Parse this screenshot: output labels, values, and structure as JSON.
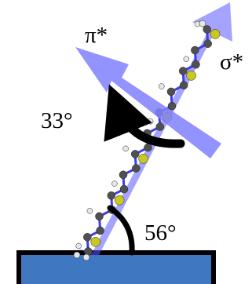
{
  "labels": {
    "pi_star": "π*",
    "sigma_star": "σ*",
    "angle_between": "33°",
    "tilt_angle": "56°"
  },
  "colors": {
    "arrow_fill": "#8080ff",
    "backbone": "#3c3cf0",
    "carbon_atom": "#505050",
    "hydrogen_atom": "#e6e6e6",
    "sulfur_atom": "#c8c81e",
    "substrate_fill": "#3f78c0",
    "substrate_edge": "#000000",
    "angle_marks": "#000000"
  },
  "icons": {
    "molecule": "oligothiophene-molecule-icon",
    "substrate": "substrate-block"
  }
}
